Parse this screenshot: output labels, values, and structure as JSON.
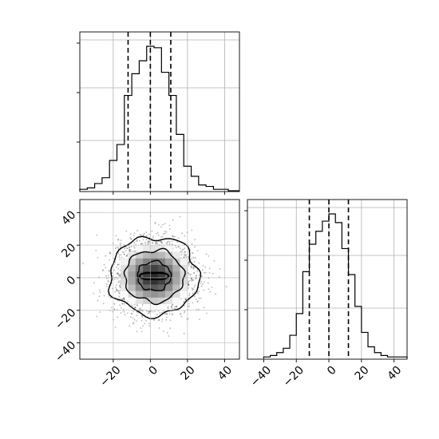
{
  "chart_data": [
    {
      "panel": "histogram-param-1",
      "type": "bar",
      "style": "step",
      "xlim": [
        -38,
        48
      ],
      "bin_edges": [
        -38,
        -34,
        -30,
        -26,
        -22,
        -18,
        -14,
        -10,
        -6,
        -2,
        2,
        6,
        10,
        14,
        18,
        22,
        26,
        30,
        34,
        38,
        42,
        46
      ],
      "values": [
        1,
        2,
        5,
        9,
        21,
        32,
        66,
        81,
        90,
        100,
        99,
        82,
        66,
        39,
        17,
        10,
        4,
        3,
        1,
        1,
        0
      ],
      "quantile_lines_x": [
        -12,
        0,
        11
      ],
      "grid": true
    },
    {
      "panel": "histogram-param-2",
      "type": "bar",
      "style": "step",
      "xlim": [
        -50,
        48
      ],
      "bin_edges": [
        -40,
        -36,
        -32,
        -28,
        -24,
        -20,
        -16,
        -12,
        -8,
        -4,
        0,
        4,
        8,
        12,
        16,
        20,
        24,
        28,
        32,
        36,
        40,
        44,
        48
      ],
      "values": [
        1,
        2,
        4,
        7,
        16,
        31,
        60,
        79,
        88,
        95,
        100,
        94,
        76,
        58,
        36,
        18,
        8,
        4,
        2,
        1,
        1,
        1
      ],
      "quantile_lines_x": [
        -12,
        0,
        12
      ],
      "x_ticks": [
        -40,
        -20,
        0,
        20,
        40
      ],
      "x_tick_labels": [
        "−40",
        "−20",
        "0",
        "20",
        "40"
      ],
      "grid": true
    },
    {
      "panel": "2d-density-param-1-vs-param-2",
      "type": "heatmap",
      "overlay": [
        "scatter",
        "contour"
      ],
      "xlim": [
        -38,
        48
      ],
      "ylim": [
        -50,
        48
      ],
      "x_ticks": [
        -20,
        0,
        20,
        40
      ],
      "x_tick_labels": [
        "−20",
        "0",
        "20",
        "40"
      ],
      "y_ticks": [
        -40,
        -20,
        0,
        20,
        40
      ],
      "y_tick_labels": [
        "−40",
        "−20",
        "0",
        "20",
        "40"
      ],
      "center": [
        2,
        1
      ],
      "sigma": [
        11,
        11
      ],
      "contour_radii": [
        3,
        9,
        16,
        24
      ],
      "grid": true
    }
  ]
}
